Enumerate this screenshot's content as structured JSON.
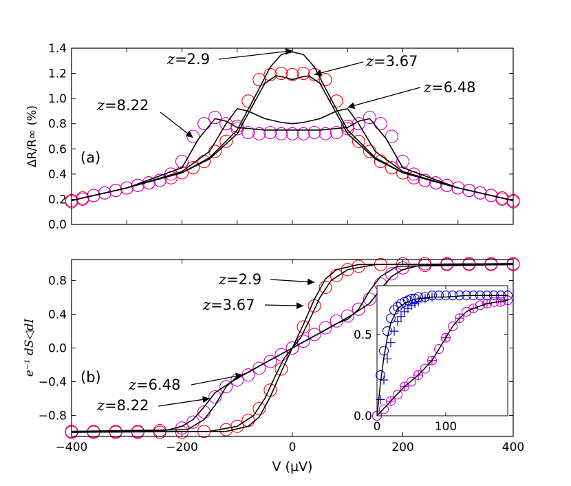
{
  "chart_data": [
    {
      "type": "line",
      "panel_label": "(a)",
      "title": "",
      "xlabel": "",
      "ylabel": "ΔR/R∞ (%)",
      "xlim": [
        -400,
        400
      ],
      "ylim": [
        0.0,
        1.4
      ],
      "yticks": [
        0.0,
        0.2,
        0.4,
        0.6,
        0.8,
        1.0,
        1.2,
        1.4
      ],
      "ytick_labels": [
        "0.0",
        "0.2",
        "0.4",
        "0.6",
        "0.8",
        "1.0",
        "1.2",
        "1.4"
      ],
      "xticks": [
        -400,
        -300,
        -200,
        -100,
        0,
        100,
        200,
        300,
        400
      ],
      "series": [
        {
          "name": "theory z=2.9",
          "style": "line",
          "color": "#000000",
          "x": [
            -400,
            -300,
            -200,
            -150,
            -100,
            -60,
            -40,
            -20,
            0,
            20,
            40,
            60,
            100,
            150,
            200,
            300,
            400
          ],
          "y": [
            0.19,
            0.29,
            0.41,
            0.53,
            0.75,
            1.08,
            1.25,
            1.35,
            1.37,
            1.35,
            1.25,
            1.08,
            0.75,
            0.53,
            0.41,
            0.29,
            0.19
          ]
        },
        {
          "name": "theory z=3.67",
          "style": "line",
          "color": "#000000",
          "x": [
            -400,
            -300,
            -200,
            -150,
            -100,
            -70,
            -50,
            -30,
            -15,
            0,
            15,
            30,
            50,
            70,
            100,
            150,
            200,
            300,
            400
          ],
          "y": [
            0.19,
            0.29,
            0.41,
            0.52,
            0.72,
            0.96,
            1.12,
            1.18,
            1.17,
            1.15,
            1.17,
            1.18,
            1.12,
            0.96,
            0.72,
            0.52,
            0.41,
            0.29,
            0.19
          ]
        },
        {
          "name": "theory z=6.48",
          "style": "line",
          "color": "#000000",
          "x": [
            -400,
            -300,
            -200,
            -150,
            -120,
            -100,
            -80,
            -50,
            -20,
            0,
            20,
            50,
            80,
            100,
            120,
            150,
            200,
            300,
            400
          ],
          "y": [
            0.19,
            0.29,
            0.42,
            0.58,
            0.8,
            0.92,
            0.9,
            0.84,
            0.81,
            0.8,
            0.81,
            0.84,
            0.9,
            0.92,
            0.8,
            0.58,
            0.42,
            0.29,
            0.19
          ]
        },
        {
          "name": "theory z=8.22",
          "style": "line",
          "color": "#000000",
          "x": [
            -400,
            -300,
            -200,
            -170,
            -140,
            -120,
            -100,
            -50,
            0,
            50,
            100,
            120,
            140,
            170,
            200,
            300,
            400
          ],
          "y": [
            0.19,
            0.29,
            0.45,
            0.68,
            0.84,
            0.82,
            0.77,
            0.75,
            0.75,
            0.75,
            0.77,
            0.82,
            0.84,
            0.68,
            0.45,
            0.29,
            0.19
          ]
        },
        {
          "name": "data z=3.67",
          "style": "circle",
          "color": "#ff0000",
          "x": [
            -400,
            -380,
            -360,
            -340,
            -320,
            -300,
            -280,
            -260,
            -240,
            -220,
            -200,
            -180,
            -160,
            -140,
            -120,
            -100,
            -80,
            -60,
            -40,
            -20,
            0,
            20,
            40,
            60,
            80,
            100,
            120,
            140,
            160,
            180,
            200,
            220,
            240,
            260,
            280,
            300,
            320,
            340,
            360,
            380,
            400
          ],
          "y": [
            0.19,
            0.21,
            0.23,
            0.25,
            0.27,
            0.29,
            0.31,
            0.33,
            0.35,
            0.37,
            0.41,
            0.45,
            0.5,
            0.58,
            0.66,
            0.78,
            0.98,
            1.15,
            1.19,
            1.2,
            1.19,
            1.2,
            1.19,
            1.15,
            0.98,
            0.78,
            0.66,
            0.58,
            0.5,
            0.45,
            0.41,
            0.37,
            0.35,
            0.33,
            0.31,
            0.29,
            0.27,
            0.25,
            0.23,
            0.21,
            0.19
          ]
        },
        {
          "name": "data z=8.22",
          "style": "circle",
          "color": "#cc00cc",
          "x": [
            -400,
            -380,
            -360,
            -340,
            -320,
            -300,
            -280,
            -260,
            -240,
            -220,
            -200,
            -180,
            -160,
            -140,
            -120,
            -100,
            -80,
            -60,
            -40,
            -20,
            0,
            20,
            40,
            60,
            80,
            100,
            120,
            140,
            160,
            180,
            200,
            220,
            240,
            260,
            280,
            300,
            320,
            340,
            360,
            380,
            400
          ],
          "y": [
            0.18,
            0.2,
            0.23,
            0.25,
            0.27,
            0.29,
            0.31,
            0.33,
            0.35,
            0.4,
            0.5,
            0.7,
            0.8,
            0.85,
            0.8,
            0.76,
            0.73,
            0.72,
            0.73,
            0.72,
            0.72,
            0.72,
            0.73,
            0.72,
            0.73,
            0.76,
            0.8,
            0.85,
            0.8,
            0.7,
            0.5,
            0.4,
            0.35,
            0.33,
            0.31,
            0.29,
            0.27,
            0.25,
            0.23,
            0.2,
            0.18
          ]
        }
      ],
      "annotations": [
        {
          "text": "z=2.9",
          "z": "z",
          "val": "=2.9",
          "arrow_to": [
            0,
            1.38
          ]
        },
        {
          "text": "z=3.67",
          "z": "z",
          "val": "=3.67",
          "arrow_to": [
            40,
            1.19
          ]
        },
        {
          "text": "z=6.48",
          "z": "z",
          "val": "=6.48",
          "arrow_to": [
            100,
            0.93
          ]
        },
        {
          "text": "z=8.22",
          "z": "z",
          "val": "=8.22",
          "arrow_to": [
            -180,
            0.69
          ]
        }
      ]
    },
    {
      "type": "line",
      "panel_label": "(b)",
      "title": "",
      "xlabel": "V (μV)",
      "ylabel": "e⁻¹ dS◁dI",
      "xlim": [
        -400,
        400
      ],
      "ylim": [
        -1.05,
        1.05
      ],
      "yticks": [
        -0.8,
        -0.4,
        0.0,
        0.4,
        0.8
      ],
      "ytick_labels": [
        "−0.8",
        "−0.4",
        "0.0",
        "0.4",
        "0.8"
      ],
      "xticks": [
        -400,
        -200,
        0,
        200,
        400
      ],
      "xtick_labels": [
        "−400",
        "−200",
        "0",
        "200",
        "400"
      ],
      "series": [
        {
          "name": "theory z=2.9",
          "style": "line",
          "color": "#000000",
          "x": [
            -400,
            -120,
            -80,
            -60,
            -40,
            -20,
            0,
            20,
            40,
            60,
            80,
            120,
            400
          ],
          "y": [
            -1.0,
            -0.99,
            -0.93,
            -0.82,
            -0.58,
            -0.28,
            0,
            0.28,
            0.58,
            0.82,
            0.93,
            0.99,
            1.0
          ]
        },
        {
          "name": "theory z=3.67",
          "style": "line",
          "color": "#000000",
          "x": [
            -400,
            -150,
            -100,
            -70,
            -50,
            -30,
            -15,
            0,
            15,
            30,
            50,
            70,
            100,
            150,
            400
          ],
          "y": [
            -1.0,
            -0.99,
            -0.93,
            -0.8,
            -0.6,
            -0.32,
            -0.12,
            0,
            0.12,
            0.32,
            0.6,
            0.8,
            0.93,
            0.99,
            1.0
          ]
        },
        {
          "name": "theory z=6.48",
          "style": "line",
          "color": "#000000",
          "x": [
            -400,
            -190,
            -160,
            -140,
            -120,
            -100,
            -80,
            -50,
            0,
            50,
            80,
            100,
            120,
            140,
            160,
            190,
            400
          ],
          "y": [
            -0.99,
            -0.97,
            -0.85,
            -0.68,
            -0.46,
            -0.34,
            -0.29,
            -0.18,
            0,
            0.18,
            0.29,
            0.34,
            0.46,
            0.68,
            0.85,
            0.97,
            0.99
          ]
        },
        {
          "name": "theory z=8.22",
          "style": "line",
          "color": "#000000",
          "x": [
            -400,
            -230,
            -200,
            -180,
            -160,
            -140,
            -110,
            -70,
            0,
            70,
            110,
            140,
            160,
            180,
            200,
            230,
            400
          ],
          "y": [
            -0.99,
            -0.98,
            -0.93,
            -0.85,
            -0.7,
            -0.53,
            -0.4,
            -0.25,
            0,
            0.25,
            0.4,
            0.53,
            0.7,
            0.85,
            0.93,
            0.98,
            0.99
          ]
        },
        {
          "name": "data z=3.67",
          "style": "circle",
          "color": "#ff0000",
          "x": [
            -400,
            -360,
            -320,
            -280,
            -240,
            -200,
            -160,
            -120,
            -100,
            -80,
            -60,
            -40,
            -20,
            0,
            20,
            40,
            60,
            80,
            100,
            120,
            160,
            200,
            240,
            280,
            320,
            360,
            400
          ],
          "y": [
            -1.0,
            -1.0,
            -1.0,
            -1.0,
            -1.0,
            -1.0,
            -0.99,
            -0.97,
            -0.93,
            -0.86,
            -0.72,
            -0.5,
            -0.25,
            0,
            0.25,
            0.5,
            0.72,
            0.86,
            0.93,
            0.97,
            0.99,
            1.0,
            1.0,
            1.0,
            1.0,
            1.0,
            1.0
          ]
        },
        {
          "name": "data z=8.22",
          "style": "circle",
          "color": "#cc00cc",
          "x": [
            -400,
            -360,
            -320,
            -280,
            -240,
            -200,
            -180,
            -160,
            -140,
            -120,
            -100,
            -80,
            -60,
            -40,
            -20,
            0,
            20,
            40,
            60,
            80,
            100,
            120,
            140,
            160,
            180,
            200,
            240,
            280,
            320,
            360,
            400
          ],
          "y": [
            -0.99,
            -0.99,
            -0.99,
            -0.99,
            -0.98,
            -0.95,
            -0.88,
            -0.76,
            -0.58,
            -0.46,
            -0.38,
            -0.32,
            -0.24,
            -0.16,
            -0.08,
            0,
            0.08,
            0.16,
            0.24,
            0.32,
            0.38,
            0.46,
            0.58,
            0.76,
            0.88,
            0.95,
            0.98,
            0.99,
            0.99,
            0.99,
            0.99
          ]
        }
      ],
      "annotations": [
        {
          "text": "z=2.9",
          "z": "z",
          "val": "=2.9",
          "arrow_to": [
            40,
            0.78
          ]
        },
        {
          "text": "z=3.67",
          "z": "z",
          "val": "=3.67",
          "arrow_to": [
            20,
            0.5
          ]
        },
        {
          "text": "z=6.48",
          "z": "z",
          "val": "=6.48",
          "arrow_to": [
            -90,
            -0.32
          ]
        },
        {
          "text": "z=8.22",
          "z": "z",
          "val": "=8.22",
          "arrow_to": [
            -150,
            -0.6
          ]
        }
      ],
      "inset": {
        "xlim": [
          0,
          190
        ],
        "ylim": [
          0.0,
          0.8
        ],
        "yticks": [
          0.0,
          0.5
        ],
        "ytick_labels": [
          "0.0",
          "0.5"
        ],
        "xticks": [
          0,
          100
        ],
        "xtick_labels": [
          "0",
          "100"
        ],
        "series": [
          {
            "name": "blue circles",
            "style": "circle",
            "color": "#0000cc",
            "x": [
              0,
              5,
              10,
              15,
              20,
              25,
              30,
              35,
              40,
              45,
              50,
              55,
              60,
              70,
              80,
              90,
              100,
              110,
              120,
              130,
              140,
              150,
              160,
              170,
              180,
              190
            ],
            "y": [
              0.0,
              0.25,
              0.4,
              0.52,
              0.6,
              0.65,
              0.67,
              0.69,
              0.7,
              0.71,
              0.72,
              0.72,
              0.73,
              0.73,
              0.74,
              0.74,
              0.74,
              0.74,
              0.74,
              0.74,
              0.74,
              0.74,
              0.74,
              0.74,
              0.74,
              0.74
            ]
          },
          {
            "name": "blue crosses",
            "style": "cross",
            "color": "#0000cc",
            "x": [
              5,
              10,
              15,
              20,
              25,
              30,
              35,
              40,
              45,
              50,
              55,
              60,
              70,
              80
            ],
            "y": [
              0.1,
              0.22,
              0.35,
              0.45,
              0.52,
              0.58,
              0.61,
              0.64,
              0.66,
              0.68,
              0.69,
              0.7,
              0.72,
              0.73
            ]
          },
          {
            "name": "magenta circles",
            "style": "circle",
            "color": "#cc00cc",
            "x": [
              0,
              10,
              20,
              30,
              40,
              50,
              60,
              70,
              80,
              90,
              100,
              110,
              120,
              130,
              140,
              150,
              160,
              170,
              180,
              190
            ],
            "y": [
              0.0,
              0.04,
              0.09,
              0.13,
              0.18,
              0.21,
              0.25,
              0.29,
              0.34,
              0.41,
              0.48,
              0.55,
              0.6,
              0.64,
              0.66,
              0.68,
              0.69,
              0.7,
              0.7,
              0.71
            ]
          },
          {
            "name": "magenta crosses",
            "style": "cross",
            "color": "#cc00cc",
            "x": [
              20,
              40,
              60,
              80,
              100,
              120,
              140,
              160,
              180
            ],
            "y": [
              0.09,
              0.18,
              0.25,
              0.34,
              0.48,
              0.6,
              0.66,
              0.69,
              0.7
            ]
          },
          {
            "name": "theory blue",
            "style": "line",
            "color": "#000000",
            "x": [
              0,
              5,
              10,
              15,
              20,
              30,
              40,
              50,
              60,
              80,
              100,
              130,
              160,
              190
            ],
            "y": [
              0.0,
              0.2,
              0.36,
              0.48,
              0.57,
              0.66,
              0.69,
              0.71,
              0.72,
              0.73,
              0.73,
              0.74,
              0.74,
              0.74
            ]
          },
          {
            "name": "theory magenta",
            "style": "line",
            "color": "#000000",
            "x": [
              0,
              20,
              40,
              60,
              80,
              90,
              100,
              110,
              120,
              130,
              140,
              160,
              190
            ],
            "y": [
              0.0,
              0.09,
              0.18,
              0.25,
              0.34,
              0.41,
              0.48,
              0.55,
              0.6,
              0.64,
              0.66,
              0.69,
              0.71
            ]
          }
        ]
      }
    }
  ]
}
